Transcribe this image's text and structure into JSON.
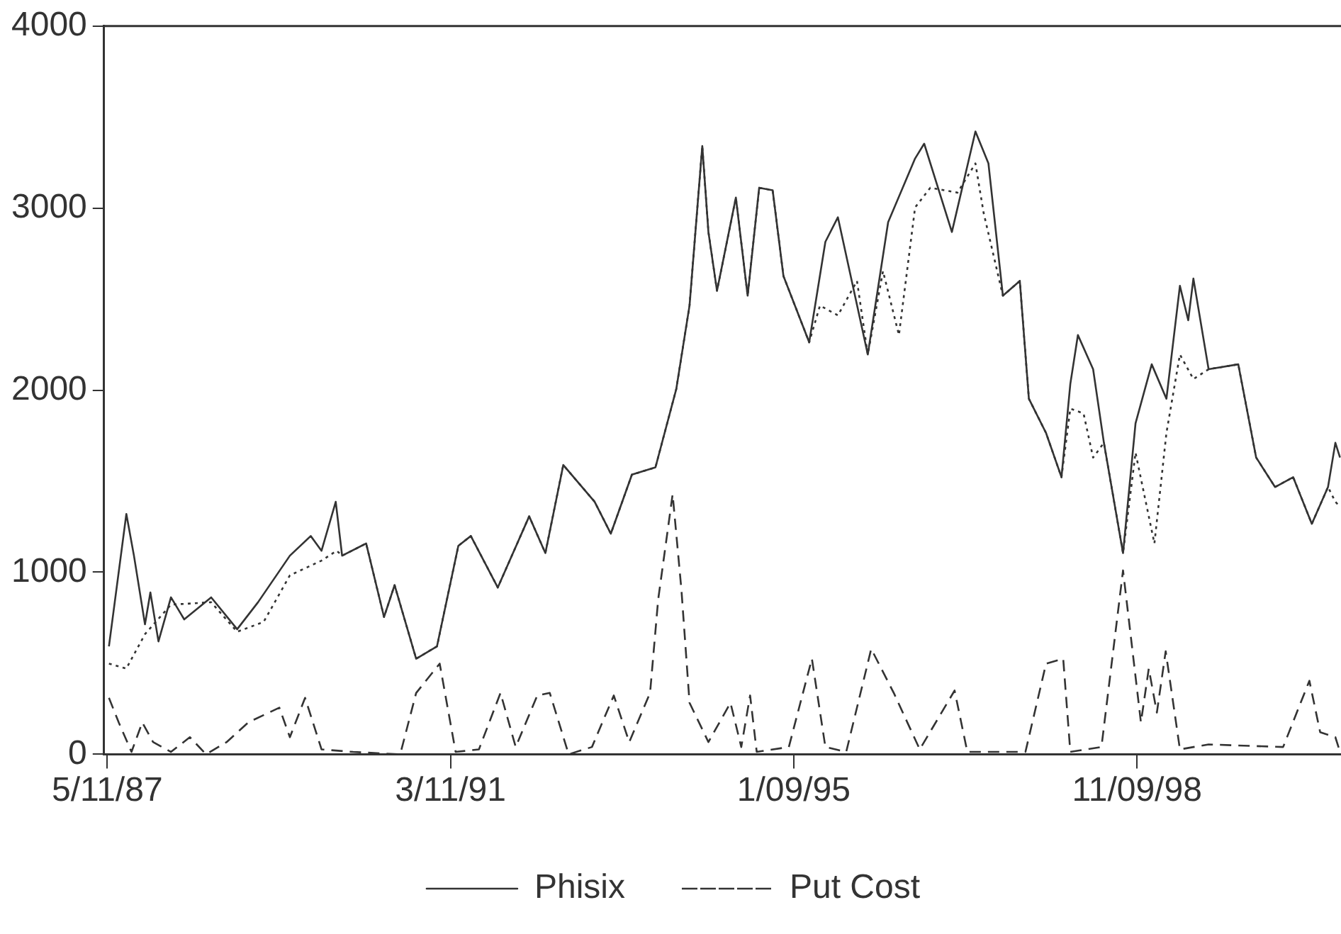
{
  "chart_data": {
    "type": "line",
    "legend": "bottom",
    "grid": false,
    "marker": "none",
    "xlim": [
      "1987-04-28",
      "2001-02-18"
    ],
    "ylim": [
      0,
      4000
    ],
    "yticks": [
      0,
      1000,
      2000,
      3000,
      4000
    ],
    "xticks": [
      {
        "value": "1987-05-11",
        "label": "5/11/87"
      },
      {
        "value": "1991-03-11",
        "label": "3/11/91"
      },
      {
        "value": "1995-01-09",
        "label": "1/09/95"
      },
      {
        "value": "1998-11-09",
        "label": "11/09/98"
      }
    ],
    "series": [
      {
        "name": "Phisix",
        "color": "#333333",
        "line_style": "solid",
        "x": [
          "1987-05-18",
          "1987-07-28",
          "1987-08-28",
          "1987-10-12",
          "1987-11-03",
          "1987-12-06",
          "1988-01-26",
          "1988-03-20",
          "1988-07-08",
          "1988-10-22",
          "1989-01-15",
          "1989-05-25",
          "1989-08-18",
          "1989-10-01",
          "1989-11-28",
          "1989-12-24",
          "1990-04-01",
          "1990-06-13",
          "1990-07-26",
          "1990-10-22",
          "1991-01-15",
          "1991-04-12",
          "1991-06-02",
          "1991-09-20",
          "1992-01-26",
          "1992-04-01",
          "1992-06-13",
          "1992-10-19",
          "1992-12-24",
          "1993-03-20",
          "1993-06-24",
          "1993-09-17",
          "1993-11-10",
          "1994-01-01",
          "1994-01-26",
          "1994-03-02",
          "1994-05-18",
          "1994-07-05",
          "1994-08-21",
          "1994-10-15",
          "1994-11-28",
          "1995-03-13",
          "1995-05-18",
          "1995-07-08",
          "1995-11-07",
          "1996-01-29",
          "1996-05-18",
          "1996-06-24",
          "1996-10-15",
          "1997-01-19",
          "1997-03-13",
          "1997-05-11",
          "1997-07-19",
          "1997-08-25",
          "1997-11-03",
          "1998-01-05",
          "1998-02-10",
          "1998-03-13",
          "1998-05-14",
          "1998-06-27",
          "1998-09-13",
          "1998-11-03",
          "1999-01-08",
          "1999-03-09",
          "1999-05-03",
          "1999-06-06",
          "1999-06-27",
          "1999-08-28",
          "1999-12-27",
          "2000-03-09",
          "2000-05-25",
          "2000-08-07",
          "2000-10-22",
          "2000-12-27",
          "2001-01-26",
          "2001-02-14"
        ],
        "values": [
          593,
          1320,
          1091,
          714,
          889,
          620,
          862,
          741,
          862,
          687,
          835,
          1091,
          1199,
          1118,
          1387,
          1091,
          1158,
          754,
          929,
          525,
          593,
          1145,
          1199,
          916,
          1307,
          1105,
          1589,
          1387,
          1212,
          1536,
          1576,
          2007,
          2465,
          3341,
          2869,
          2546,
          3058,
          2519,
          3112,
          3098,
          2627,
          2263,
          2815,
          2950,
          2196,
          2923,
          3273,
          3354,
          2869,
          3421,
          3246,
          2519,
          2600,
          1953,
          1765,
          1522,
          2034,
          2303,
          2115,
          1711,
          1105,
          1818,
          2142,
          1953,
          2573,
          2384,
          2613,
          2115,
          2142,
          1630,
          1468,
          1522,
          1266,
          1468,
          1711,
          1630
        ]
      },
      {
        "color": "#333333",
        "line_style": "dotted",
        "x": [
          "1987-05-18",
          "1987-07-28",
          "1987-10-12",
          "1988-01-26",
          "1988-07-08",
          "1988-10-22",
          "1989-02-07",
          "1989-05-25",
          "1989-10-01",
          "1989-12-02",
          "1989-12-24",
          "1990-04-01",
          "1990-06-13",
          "1990-07-26",
          "1990-10-22",
          "1991-01-15",
          "1991-04-12",
          "1991-06-02",
          "1991-09-20",
          "1992-01-26",
          "1992-04-01",
          "1992-06-13",
          "1992-10-19",
          "1992-12-24",
          "1993-03-20",
          "1993-06-24",
          "1993-09-17",
          "1993-11-10",
          "1994-01-01",
          "1994-01-26",
          "1994-03-02",
          "1994-05-18",
          "1994-07-05",
          "1994-08-21",
          "1994-10-15",
          "1994-11-28",
          "1995-03-13",
          "1995-04-26",
          "1995-07-08",
          "1995-09-24",
          "1995-11-07",
          "1996-01-08",
          "1996-03-13",
          "1996-05-18",
          "1996-07-19",
          "1996-11-07",
          "1997-01-19",
          "1997-02-21",
          "1997-05-11",
          "1997-07-19",
          "1997-08-25",
          "1997-11-03",
          "1998-01-05",
          "1998-02-10",
          "1998-04-05",
          "1998-05-14",
          "1998-06-27",
          "1998-09-13",
          "1998-11-03",
          "1999-01-19",
          "1999-03-09",
          "1999-05-03",
          "1999-06-27",
          "1999-08-28",
          "1999-12-27",
          "2000-03-09",
          "2000-05-25",
          "2000-08-07",
          "2000-10-22",
          "2000-12-27",
          "2001-01-26",
          "2001-02-14"
        ],
        "values": [
          498,
          471,
          660,
          822,
          835,
          673,
          727,
          983,
          1064,
          1118,
          1091,
          1158,
          754,
          929,
          525,
          593,
          1145,
          1199,
          916,
          1307,
          1105,
          1589,
          1387,
          1212,
          1536,
          1576,
          2007,
          2465,
          3341,
          2869,
          2546,
          3058,
          2519,
          3112,
          3098,
          2627,
          2263,
          2465,
          2411,
          2600,
          2196,
          2654,
          2303,
          3004,
          3112,
          3085,
          3246,
          2977,
          2519,
          2600,
          1953,
          1765,
          1522,
          1899,
          1872,
          1630,
          1711,
          1105,
          1657,
          1158,
          1765,
          2196,
          2061,
          2115,
          2142,
          1630,
          1468,
          1522,
          1266,
          1468,
          1387,
          1360
        ]
      },
      {
        "name": "Put Cost",
        "color": "#333333",
        "line_style": "dashed",
        "x": [
          "1987-05-18",
          "1987-06-27",
          "1987-08-18",
          "1987-10-01",
          "1987-11-14",
          "1988-01-26",
          "1988-04-12",
          "1988-06-17",
          "1988-09-09",
          "1988-12-06",
          "1989-04-12",
          "1989-05-25",
          "1989-07-26",
          "1989-10-01",
          "1990-02-07",
          "1990-08-18",
          "1990-10-22",
          "1991-01-26",
          "1991-04-01",
          "1991-07-05",
          "1991-10-01",
          "1991-12-02",
          "1992-02-28",
          "1992-04-19",
          "1992-07-05",
          "1992-10-08",
          "1993-01-05",
          "1993-03-09",
          "1993-06-02",
          "1993-07-05",
          "1993-09-02",
          "1993-10-08",
          "1993-11-10",
          "1994-01-26",
          "1994-04-26",
          "1994-06-09",
          "1994-07-15",
          "1994-08-11",
          "1994-12-20",
          "1995-03-24",
          "1995-05-18",
          "1995-08-11",
          "1995-11-21",
          "1996-02-21",
          "1996-06-06",
          "1996-10-26",
          "1996-12-17",
          "1997-08-11",
          "1997-11-03",
          "1998-01-12",
          "1998-02-10",
          "1998-06-17",
          "1998-09-13",
          "1998-11-25",
          "1998-12-27",
          "1999-01-29",
          "1999-03-06",
          "1999-05-03",
          "1999-08-28",
          "2000-06-27",
          "2000-10-12",
          "2000-11-25",
          "2001-01-26",
          "2001-02-14"
        ],
        "values": [
          310,
          175,
          13,
          175,
          67,
          13,
          94,
          0,
          67,
          175,
          256,
          94,
          310,
          27,
          13,
          0,
          337,
          498,
          13,
          27,
          337,
          40,
          323,
          337,
          0,
          40,
          323,
          67,
          337,
          849,
          1428,
          902,
          283,
          67,
          283,
          40,
          323,
          13,
          40,
          525,
          40,
          13,
          579,
          337,
          27,
          350,
          13,
          13,
          498,
          525,
          13,
          40,
          1010,
          175,
          471,
          229,
          566,
          27,
          54,
          40,
          404,
          121,
          94,
          13
        ]
      }
    ]
  }
}
